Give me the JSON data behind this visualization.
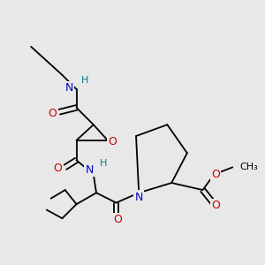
{
  "bg_color": "#e8e8e8",
  "atom_colors": {
    "O": "#cc0000",
    "N": "#0000cc",
    "H": "#008080",
    "C": "#000000"
  },
  "bond_color": "#000000",
  "bond_width": 1.3,
  "font_size": 9,
  "fig_width": 3.0,
  "fig_height": 3.0,
  "dpi": 100
}
